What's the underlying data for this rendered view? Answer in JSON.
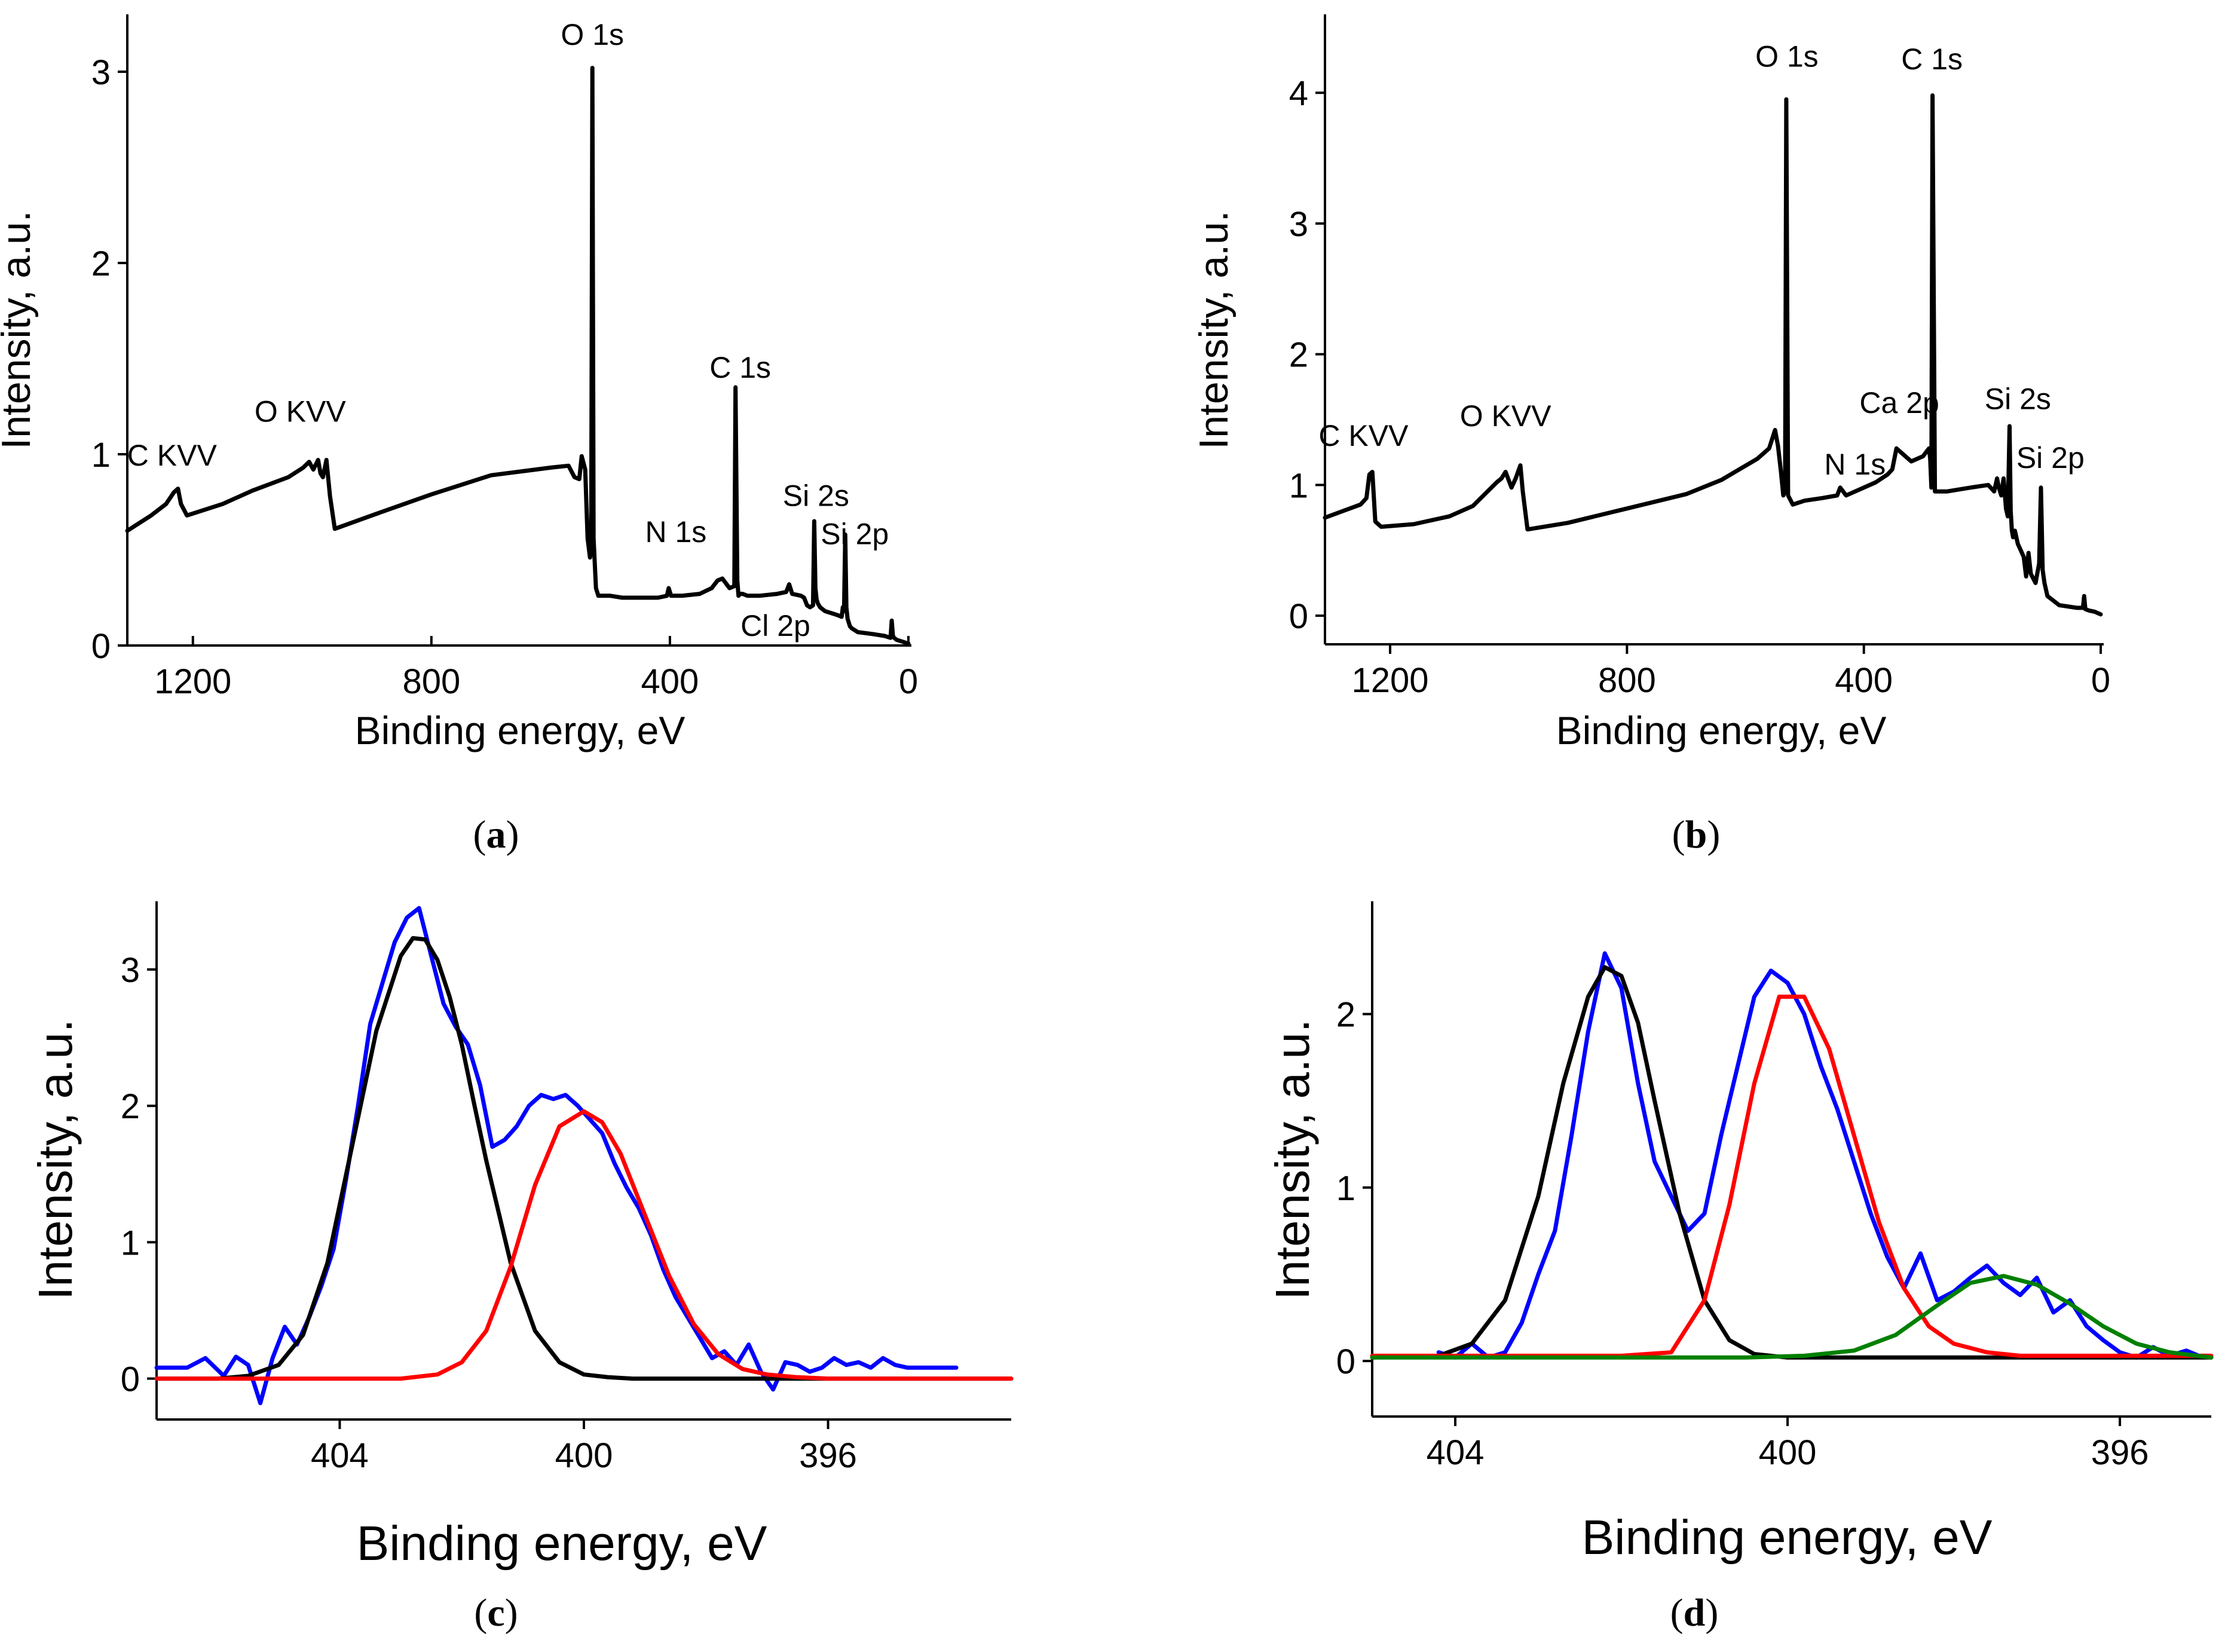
{
  "chart_data": [
    {
      "type": "line",
      "panel_label": "a",
      "xlabel": "Binding energy, eV",
      "ylabel": "Intensity, a.u.",
      "xlim": [
        1310,
        -5
      ],
      "ylim": [
        0,
        3.3
      ],
      "x_ticks": [
        1200,
        800,
        400,
        0
      ],
      "y_ticks": [
        0,
        1,
        2,
        3
      ],
      "series": [
        {
          "color": "#000000",
          "x": [
            1310,
            1270,
            1245,
            1232,
            1225,
            1220,
            1210,
            1150,
            1100,
            1040,
            1015,
            1005,
            998,
            990,
            986,
            982,
            976,
            970,
            962,
            900,
            800,
            700,
            600,
            570,
            560,
            552,
            548,
            542,
            538,
            534,
            532,
            530,
            528,
            524,
            520,
            500,
            480,
            450,
            420,
            405,
            402,
            398,
            380,
            350,
            330,
            320,
            312,
            300,
            292,
            290,
            287,
            285,
            282,
            278,
            270,
            250,
            220,
            205,
            200,
            195,
            180,
            175,
            170,
            165,
            160,
            158,
            156,
            154,
            152,
            148,
            140,
            120,
            112,
            110,
            108,
            106,
            104,
            102,
            100,
            98,
            95,
            85,
            60,
            40,
            30,
            28,
            26,
            24,
            20,
            10,
            0
          ],
          "y": [
            0.6,
            0.68,
            0.74,
            0.8,
            0.82,
            0.74,
            0.68,
            0.74,
            0.81,
            0.88,
            0.93,
            0.96,
            0.92,
            0.97,
            0.9,
            0.88,
            0.97,
            0.78,
            0.61,
            0.68,
            0.79,
            0.89,
            0.93,
            0.94,
            0.88,
            0.87,
            0.99,
            0.92,
            0.56,
            0.46,
            0.5,
            3.02,
            0.56,
            0.3,
            0.26,
            0.26,
            0.25,
            0.25,
            0.25,
            0.26,
            0.3,
            0.26,
            0.26,
            0.27,
            0.3,
            0.34,
            0.35,
            0.3,
            0.31,
            1.35,
            0.34,
            0.26,
            0.27,
            0.27,
            0.26,
            0.26,
            0.27,
            0.28,
            0.32,
            0.27,
            0.26,
            0.25,
            0.21,
            0.2,
            0.21,
            0.65,
            0.3,
            0.24,
            0.22,
            0.2,
            0.18,
            0.16,
            0.15,
            0.2,
            0.18,
            0.58,
            0.2,
            0.14,
            0.12,
            0.1,
            0.09,
            0.07,
            0.06,
            0.05,
            0.04,
            0.13,
            0.05,
            0.04,
            0.03,
            0.02,
            0.01
          ]
        }
      ],
      "annotations": [
        {
          "text": "O 1s",
          "x": 530,
          "y": 3.14,
          "anchor": "middle"
        },
        {
          "text": "C 1s",
          "x": 282,
          "y": 1.4,
          "anchor": "middle"
        },
        {
          "text": "O KVV",
          "x": 1020,
          "y": 1.17,
          "anchor": "middle"
        },
        {
          "text": "C KVV",
          "x": 1235,
          "y": 0.94,
          "anchor": "middle"
        },
        {
          "text": "N 1s",
          "x": 390,
          "y": 0.54,
          "anchor": "middle"
        },
        {
          "text": "Si 2s",
          "x": 155,
          "y": 0.73,
          "anchor": "middle"
        },
        {
          "text": "Si 2p",
          "x": 90,
          "y": 0.53,
          "anchor": "middle"
        },
        {
          "text": "Cl 2p",
          "x": 223,
          "y": 0.05,
          "anchor": "middle"
        }
      ]
    },
    {
      "type": "line",
      "panel_label": "b",
      "xlabel": "Binding energy, eV",
      "ylabel": "Intensity, a.u.",
      "xlim": [
        1310,
        -5
      ],
      "ylim": [
        -0.1,
        4.6
      ],
      "x_ticks": [
        1200,
        800,
        400,
        0
      ],
      "y_ticks": [
        0,
        1,
        2,
        3,
        4
      ],
      "series": [
        {
          "color": "#000000",
          "x": [
            1310,
            1280,
            1250,
            1240,
            1235,
            1230,
            1225,
            1215,
            1160,
            1100,
            1060,
            1040,
            1020,
            1012,
            1005,
            995,
            988,
            984,
            980,
            976,
            968,
            900,
            800,
            700,
            640,
            580,
            560,
            550,
            545,
            540,
            536,
            533,
            531,
            528,
            520,
            500,
            470,
            445,
            440,
            430,
            410,
            400,
            380,
            360,
            352,
            345,
            320,
            300,
            295,
            290,
            288,
            286,
            284,
            280,
            260,
            220,
            190,
            180,
            175,
            172,
            168,
            164,
            160,
            157,
            154,
            152,
            150,
            148,
            145,
            140,
            130,
            126,
            122,
            118,
            110,
            104,
            101,
            98,
            95,
            90,
            70,
            40,
            30,
            28,
            26,
            20,
            10,
            0
          ],
          "y": [
            0.75,
            0.8,
            0.85,
            0.9,
            1.08,
            1.1,
            0.72,
            0.68,
            0.7,
            0.76,
            0.84,
            0.93,
            1.02,
            1.05,
            1.1,
            0.98,
            1.05,
            1.1,
            1.15,
            0.95,
            0.66,
            0.71,
            0.82,
            0.93,
            1.04,
            1.2,
            1.28,
            1.42,
            1.3,
            1.1,
            0.92,
            0.95,
            3.95,
            0.92,
            0.85,
            0.88,
            0.9,
            0.92,
            0.98,
            0.92,
            0.96,
            0.98,
            1.02,
            1.08,
            1.12,
            1.28,
            1.18,
            1.22,
            1.25,
            1.28,
            1.2,
            0.98,
            3.98,
            0.95,
            0.95,
            0.98,
            1.0,
            0.95,
            1.05,
            0.98,
            0.92,
            1.05,
            0.82,
            0.76,
            1.45,
            0.8,
            0.65,
            0.6,
            0.65,
            0.55,
            0.45,
            0.3,
            0.48,
            0.32,
            0.25,
            0.4,
            0.98,
            0.35,
            0.25,
            0.15,
            0.08,
            0.06,
            0.06,
            0.15,
            0.05,
            0.04,
            0.03,
            0.01
          ]
        }
      ],
      "annotations": [
        {
          "text": "O 1s",
          "x": 530,
          "y": 4.2,
          "anchor": "middle"
        },
        {
          "text": "C 1s",
          "x": 285,
          "y": 4.18,
          "anchor": "middle"
        },
        {
          "text": "Ca 2p",
          "x": 340,
          "y": 1.55,
          "anchor": "middle"
        },
        {
          "text": "N 1s",
          "x": 415,
          "y": 1.08,
          "anchor": "middle"
        },
        {
          "text": "O KVV",
          "x": 1005,
          "y": 1.45,
          "anchor": "middle"
        },
        {
          "text": "C KVV",
          "x": 1245,
          "y": 1.3,
          "anchor": "middle"
        },
        {
          "text": "Si 2s",
          "x": 140,
          "y": 1.58,
          "anchor": "middle"
        },
        {
          "text": "Si 2p",
          "x": 85,
          "y": 1.13,
          "anchor": "middle"
        }
      ]
    },
    {
      "type": "line",
      "panel_label": "c",
      "xlabel": "Binding energy, eV",
      "ylabel": "Intensity, a.u.",
      "xlim": [
        407,
        393
      ],
      "ylim": [
        -0.3,
        3.5
      ],
      "x_ticks": [
        404,
        400,
        396
      ],
      "y_ticks": [
        0,
        1,
        2,
        3
      ],
      "series": [
        {
          "color": "#0000ff",
          "x": [
            407.0,
            406.5,
            406.2,
            405.9,
            405.7,
            405.5,
            405.3,
            405.1,
            404.9,
            404.7,
            404.5,
            404.3,
            404.1,
            403.9,
            403.7,
            403.5,
            403.3,
            403.1,
            402.9,
            402.7,
            402.5,
            402.3,
            402.1,
            401.9,
            401.7,
            401.5,
            401.3,
            401.1,
            400.9,
            400.7,
            400.5,
            400.3,
            400.1,
            399.9,
            399.7,
            399.5,
            399.3,
            399.1,
            398.9,
            398.7,
            398.5,
            398.3,
            398.1,
            397.9,
            397.7,
            397.5,
            397.3,
            397.1,
            396.9,
            396.7,
            396.5,
            396.3,
            396.1,
            395.9,
            395.7,
            395.5,
            395.3,
            395.1,
            394.9,
            394.7,
            394.5,
            394.2,
            394.0,
            393.9
          ],
          "y": [
            0.08,
            0.08,
            0.15,
            0.02,
            0.16,
            0.1,
            -0.18,
            0.15,
            0.38,
            0.25,
            0.45,
            0.68,
            0.95,
            1.45,
            2.0,
            2.6,
            2.9,
            3.2,
            3.38,
            3.45,
            3.1,
            2.75,
            2.58,
            2.45,
            2.15,
            1.7,
            1.75,
            1.85,
            2.0,
            2.08,
            2.05,
            2.08,
            2.0,
            1.9,
            1.8,
            1.58,
            1.4,
            1.25,
            1.05,
            0.8,
            0.6,
            0.45,
            0.3,
            0.15,
            0.2,
            0.1,
            0.25,
            0.05,
            -0.08,
            0.12,
            0.1,
            0.05,
            0.08,
            0.15,
            0.1,
            0.12,
            0.08,
            0.15,
            0.1,
            0.08,
            0.08,
            0.08,
            0.08,
            0.08
          ]
        },
        {
          "color": "#000000",
          "x": [
            407.0,
            406.5,
            406.0,
            405.5,
            405.0,
            404.6,
            404.2,
            403.8,
            403.4,
            403.0,
            402.8,
            402.6,
            402.4,
            402.2,
            402.0,
            401.8,
            401.6,
            401.2,
            400.8,
            400.4,
            400.0,
            399.6,
            399.2,
            398.8,
            398.0,
            397.0,
            396.0,
            395.0,
            394.0,
            393.0
          ],
          "y": [
            0.0,
            0.0,
            0.0,
            0.02,
            0.1,
            0.32,
            0.85,
            1.7,
            2.55,
            3.1,
            3.23,
            3.22,
            3.07,
            2.8,
            2.45,
            2.02,
            1.6,
            0.85,
            0.35,
            0.12,
            0.03,
            0.01,
            0.0,
            0.0,
            0.0,
            0.0,
            0.0,
            0.0,
            0.0,
            0.0
          ]
        },
        {
          "color": "#ff0000",
          "x": [
            407.0,
            405.0,
            403.0,
            402.4,
            402.0,
            401.6,
            401.2,
            400.8,
            400.4,
            400.0,
            399.7,
            399.4,
            399.0,
            398.6,
            398.2,
            397.8,
            397.4,
            397.0,
            396.5,
            396.0,
            395.0,
            394.0,
            393.0
          ],
          "y": [
            0.0,
            0.0,
            0.0,
            0.03,
            0.12,
            0.35,
            0.82,
            1.42,
            1.85,
            1.96,
            1.88,
            1.65,
            1.2,
            0.75,
            0.4,
            0.18,
            0.07,
            0.03,
            0.01,
            0.0,
            0.0,
            0.0,
            0.0
          ]
        }
      ],
      "annotations": []
    },
    {
      "type": "line",
      "panel_label": "d",
      "xlabel": "Binding energy, eV",
      "ylabel": "Intensity, a.u.",
      "xlim": [
        405,
        394.9
      ],
      "ylim": [
        -0.32,
        2.65
      ],
      "x_ticks": [
        404,
        400,
        396
      ],
      "y_ticks": [
        0,
        1,
        2
      ],
      "series": [
        {
          "color": "#0000ff",
          "x": [
            404.2,
            404.0,
            403.8,
            403.6,
            403.4,
            403.2,
            403.0,
            402.8,
            402.6,
            402.4,
            402.2,
            402.0,
            401.8,
            401.6,
            401.4,
            401.2,
            401.0,
            400.8,
            400.6,
            400.4,
            400.2,
            400.0,
            399.8,
            399.6,
            399.4,
            399.2,
            399.0,
            398.8,
            398.6,
            398.4,
            398.2,
            398.0,
            397.8,
            397.6,
            397.4,
            397.2,
            397.0,
            396.8,
            396.6,
            396.4,
            396.2,
            396.0,
            395.8,
            395.6,
            395.4,
            395.2,
            395.0
          ],
          "y": [
            0.05,
            0.02,
            0.1,
            0.02,
            0.05,
            0.22,
            0.5,
            0.75,
            1.3,
            1.9,
            2.35,
            2.15,
            1.6,
            1.15,
            0.95,
            0.75,
            0.85,
            1.3,
            1.7,
            2.1,
            2.25,
            2.18,
            2.0,
            1.7,
            1.45,
            1.15,
            0.85,
            0.6,
            0.42,
            0.62,
            0.35,
            0.4,
            0.48,
            0.55,
            0.45,
            0.38,
            0.48,
            0.28,
            0.35,
            0.2,
            0.12,
            0.05,
            0.02,
            0.08,
            0.03,
            0.06,
            0.02
          ]
        },
        {
          "color": "#000000",
          "x": [
            405.0,
            404.2,
            403.8,
            403.4,
            403.0,
            402.7,
            402.4,
            402.2,
            402.0,
            401.8,
            401.6,
            401.3,
            401.0,
            400.7,
            400.4,
            400.0,
            399.0,
            398.0,
            397.0,
            396.0,
            394.9
          ],
          "y": [
            0.02,
            0.03,
            0.1,
            0.35,
            0.95,
            1.6,
            2.1,
            2.27,
            2.22,
            1.95,
            1.5,
            0.85,
            0.35,
            0.12,
            0.04,
            0.02,
            0.02,
            0.02,
            0.02,
            0.02,
            0.02
          ]
        },
        {
          "color": "#ff0000",
          "x": [
            405.0,
            402.0,
            401.4,
            401.0,
            400.7,
            400.4,
            400.1,
            399.8,
            399.5,
            399.2,
            398.9,
            398.6,
            398.3,
            398.0,
            397.6,
            397.2,
            396.5,
            394.9
          ],
          "y": [
            0.03,
            0.03,
            0.05,
            0.35,
            0.9,
            1.6,
            2.1,
            2.1,
            1.8,
            1.3,
            0.8,
            0.42,
            0.2,
            0.1,
            0.05,
            0.03,
            0.03,
            0.03
          ],
          "peak": {
            "x": 399.95,
            "y": 2.12
          }
        },
        {
          "color": "#008000",
          "x": [
            405.0,
            400.5,
            399.8,
            399.2,
            398.7,
            398.2,
            397.8,
            397.4,
            397.0,
            396.6,
            396.2,
            395.8,
            395.4,
            394.9
          ],
          "y": [
            0.02,
            0.02,
            0.03,
            0.06,
            0.15,
            0.32,
            0.45,
            0.49,
            0.44,
            0.33,
            0.2,
            0.1,
            0.05,
            0.02
          ]
        }
      ],
      "annotations": []
    }
  ]
}
